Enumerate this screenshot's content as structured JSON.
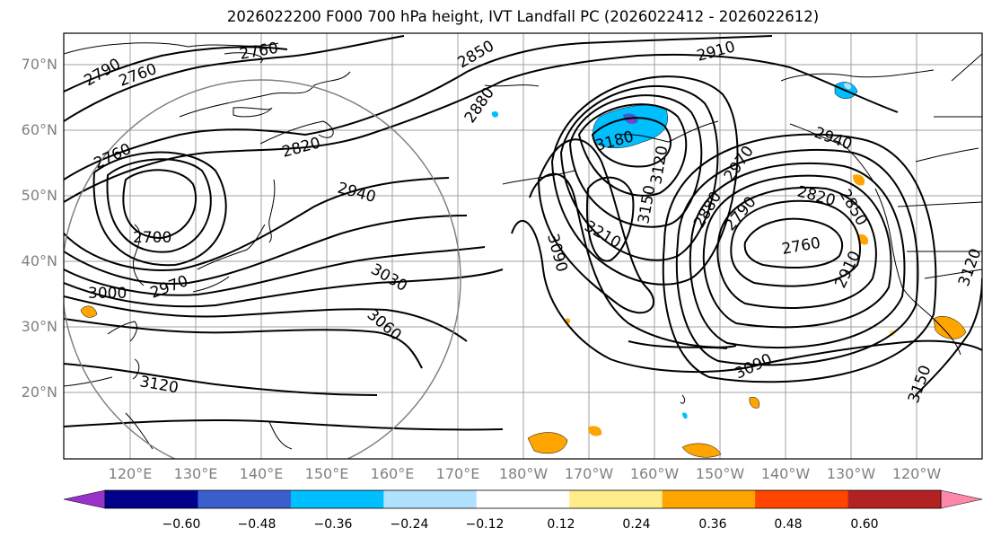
{
  "title": "2026022200 F000 700 hPa height, IVT Landfall PC (2026022412 - 2026022612)",
  "lat_labels": [
    "70°N",
    "60°N",
    "50°N",
    "40°N",
    "30°N",
    "20°N"
  ],
  "lon_labels": [
    "120°E",
    "130°E",
    "140°E",
    "150°E",
    "160°E",
    "170°E",
    "180°W",
    "170°W",
    "160°W",
    "150°W",
    "140°W",
    "130°W",
    "120°W"
  ],
  "contour_labels": [
    "2790",
    "2760",
    "2760",
    "2850",
    "2910",
    "2880",
    "2820",
    "2760",
    "2940",
    "2700",
    "3000",
    "2970",
    "3030",
    "3060",
    "3120",
    "3180",
    "3120",
    "3150",
    "3210",
    "3090",
    "2970",
    "2880",
    "2790",
    "2820",
    "2940",
    "2850",
    "2760",
    "2910",
    "3090",
    "3150",
    "3120"
  ],
  "colorbar": {
    "ticks": [
      "−0.60",
      "−0.48",
      "−0.36",
      "−0.24",
      "−0.12",
      "0.12",
      "0.24",
      "0.36",
      "0.48",
      "0.60"
    ],
    "colors": [
      "#9932cc",
      "#00008b",
      "#3a5fcd",
      "#00bfff",
      "#b0e2ff",
      "#ffffff",
      "#ffec8b",
      "#ffa500",
      "#ff4500",
      "#b22222",
      "#ff88aa"
    ]
  }
}
